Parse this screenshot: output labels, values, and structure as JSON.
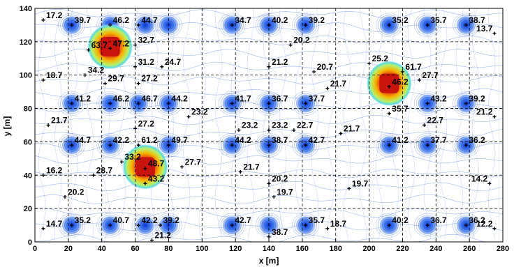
{
  "chart_data": {
    "type": "contour",
    "xlabel": "x [m]",
    "ylabel": "y [m]",
    "xlim": [
      0,
      280
    ],
    "ylim": [
      0,
      140
    ],
    "xticks": [
      "0",
      "20",
      "40",
      "60",
      "80",
      "100",
      "120",
      "140",
      "160",
      "180",
      "200",
      "220",
      "240",
      "260",
      "280"
    ],
    "yticks": [
      "0",
      "20",
      "40",
      "60",
      "80",
      "100",
      "120",
      "140"
    ],
    "grid": true,
    "colors": {
      "line": "#2a5bd8",
      "hot_core": "#d21c12",
      "hot_mid": "#f5b800",
      "marker": "#000000"
    },
    "points": [
      {
        "x": 5,
        "y": 133,
        "label": "17.2"
      },
      {
        "x": 22,
        "y": 130,
        "label": "39.7"
      },
      {
        "x": 45,
        "y": 130,
        "label": "46.2"
      },
      {
        "x": 62,
        "y": 130,
        "label": "44.7"
      },
      {
        "x": 118,
        "y": 130,
        "label": "34.7"
      },
      {
        "x": 140,
        "y": 130,
        "label": "40.2"
      },
      {
        "x": 162,
        "y": 130,
        "label": "39.2"
      },
      {
        "x": 212,
        "y": 130,
        "label": "35.2"
      },
      {
        "x": 235,
        "y": 130,
        "label": "35.7"
      },
      {
        "x": 258,
        "y": 130,
        "label": "38.7"
      },
      {
        "x": 275,
        "y": 125,
        "label": "13.7"
      },
      {
        "x": 45,
        "y": 116,
        "label": "47.2"
      },
      {
        "x": 32,
        "y": 115,
        "label": "63.7"
      },
      {
        "x": 60,
        "y": 118,
        "label": "32.7"
      },
      {
        "x": 153,
        "y": 118,
        "label": "20.2"
      },
      {
        "x": 60,
        "y": 105,
        "label": "31.2"
      },
      {
        "x": 76,
        "y": 105,
        "label": "24.7"
      },
      {
        "x": 140,
        "y": 105,
        "label": "21.2"
      },
      {
        "x": 167,
        "y": 102,
        "label": "20.7"
      },
      {
        "x": 200,
        "y": 107,
        "label": "25.2"
      },
      {
        "x": 5,
        "y": 97,
        "label": "18.7"
      },
      {
        "x": 30,
        "y": 100,
        "label": "34.2"
      },
      {
        "x": 42,
        "y": 95,
        "label": "29.7"
      },
      {
        "x": 62,
        "y": 95,
        "label": "27.2"
      },
      {
        "x": 220,
        "y": 102,
        "label": "61.7"
      },
      {
        "x": 230,
        "y": 97,
        "label": "27.7"
      },
      {
        "x": 212,
        "y": 93,
        "label": "46.2"
      },
      {
        "x": 175,
        "y": 92,
        "label": "21.7"
      },
      {
        "x": 22,
        "y": 83,
        "label": "41.2"
      },
      {
        "x": 45,
        "y": 83,
        "label": "46.2"
      },
      {
        "x": 62,
        "y": 83,
        "label": "46.7"
      },
      {
        "x": 80,
        "y": 83,
        "label": "44.2"
      },
      {
        "x": 118,
        "y": 83,
        "label": "41.7"
      },
      {
        "x": 140,
        "y": 83,
        "label": "36.7"
      },
      {
        "x": 162,
        "y": 83,
        "label": "37.7"
      },
      {
        "x": 235,
        "y": 83,
        "label": "43.2"
      },
      {
        "x": 258,
        "y": 83,
        "label": "39.2"
      },
      {
        "x": 212,
        "y": 77,
        "label": "35.7"
      },
      {
        "x": 92,
        "y": 75,
        "label": "23.2"
      },
      {
        "x": 275,
        "y": 75,
        "label": "21.2"
      },
      {
        "x": 8,
        "y": 70,
        "label": "21.7"
      },
      {
        "x": 60,
        "y": 68,
        "label": "27.2"
      },
      {
        "x": 122,
        "y": 67,
        "label": "23.2"
      },
      {
        "x": 140,
        "y": 67,
        "label": "23.2"
      },
      {
        "x": 155,
        "y": 67,
        "label": "22.7"
      },
      {
        "x": 183,
        "y": 65,
        "label": "21.7"
      },
      {
        "x": 233,
        "y": 70,
        "label": "22.7"
      },
      {
        "x": 22,
        "y": 58,
        "label": "44.7"
      },
      {
        "x": 45,
        "y": 58,
        "label": "42.2"
      },
      {
        "x": 62,
        "y": 58,
        "label": "61.2"
      },
      {
        "x": 80,
        "y": 58,
        "label": "49.7"
      },
      {
        "x": 118,
        "y": 58,
        "label": "44.2"
      },
      {
        "x": 140,
        "y": 58,
        "label": "38.7"
      },
      {
        "x": 162,
        "y": 58,
        "label": "42.7"
      },
      {
        "x": 212,
        "y": 58,
        "label": "41.2"
      },
      {
        "x": 235,
        "y": 58,
        "label": "37.7"
      },
      {
        "x": 258,
        "y": 58,
        "label": "36.2"
      },
      {
        "x": 52,
        "y": 48,
        "label": "33.2"
      },
      {
        "x": 66,
        "y": 44,
        "label": "48.7"
      },
      {
        "x": 88,
        "y": 45,
        "label": "27.7"
      },
      {
        "x": 5,
        "y": 40,
        "label": "16.2"
      },
      {
        "x": 35,
        "y": 40,
        "label": "28.7"
      },
      {
        "x": 123,
        "y": 42,
        "label": "21.7"
      },
      {
        "x": 140,
        "y": 35,
        "label": "20.2"
      },
      {
        "x": 188,
        "y": 32,
        "label": "19.7"
      },
      {
        "x": 272,
        "y": 35,
        "label": "14.2"
      },
      {
        "x": 66,
        "y": 35,
        "label": "43.2"
      },
      {
        "x": 18,
        "y": 27,
        "label": "20.2"
      },
      {
        "x": 143,
        "y": 27,
        "label": "19.7"
      },
      {
        "x": 5,
        "y": 8,
        "label": "14.7"
      },
      {
        "x": 22,
        "y": 10,
        "label": "35.2"
      },
      {
        "x": 45,
        "y": 10,
        "label": "40.7"
      },
      {
        "x": 62,
        "y": 10,
        "label": "42.2"
      },
      {
        "x": 75,
        "y": 10,
        "label": "39.2"
      },
      {
        "x": 118,
        "y": 10,
        "label": "42.7"
      },
      {
        "x": 162,
        "y": 10,
        "label": "35.7"
      },
      {
        "x": 212,
        "y": 10,
        "label": "40.2"
      },
      {
        "x": 235,
        "y": 10,
        "label": "36.7"
      },
      {
        "x": 258,
        "y": 10,
        "label": "36.2"
      },
      {
        "x": 275,
        "y": 8,
        "label": "12.2"
      },
      {
        "x": 175,
        "y": 8,
        "label": "18.7"
      },
      {
        "x": 70,
        "y": 1,
        "label": "21.2"
      },
      {
        "x": 140,
        "y": 3,
        "label": "38.7"
      }
    ],
    "sources": [
      {
        "x": 22,
        "y": 130
      },
      {
        "x": 45,
        "y": 130
      },
      {
        "x": 66,
        "y": 130
      },
      {
        "x": 80,
        "y": 130
      },
      {
        "x": 118,
        "y": 130
      },
      {
        "x": 140,
        "y": 130
      },
      {
        "x": 162,
        "y": 130
      },
      {
        "x": 212,
        "y": 130
      },
      {
        "x": 235,
        "y": 130
      },
      {
        "x": 258,
        "y": 130
      },
      {
        "x": 22,
        "y": 83
      },
      {
        "x": 45,
        "y": 83
      },
      {
        "x": 62,
        "y": 83
      },
      {
        "x": 80,
        "y": 83
      },
      {
        "x": 118,
        "y": 83
      },
      {
        "x": 140,
        "y": 83
      },
      {
        "x": 162,
        "y": 83
      },
      {
        "x": 235,
        "y": 83
      },
      {
        "x": 258,
        "y": 83
      },
      {
        "x": 22,
        "y": 58
      },
      {
        "x": 45,
        "y": 58
      },
      {
        "x": 80,
        "y": 58
      },
      {
        "x": 118,
        "y": 58
      },
      {
        "x": 140,
        "y": 58
      },
      {
        "x": 162,
        "y": 58
      },
      {
        "x": 212,
        "y": 58
      },
      {
        "x": 235,
        "y": 58
      },
      {
        "x": 258,
        "y": 58
      },
      {
        "x": 22,
        "y": 10
      },
      {
        "x": 45,
        "y": 10
      },
      {
        "x": 66,
        "y": 10
      },
      {
        "x": 80,
        "y": 10
      },
      {
        "x": 118,
        "y": 10
      },
      {
        "x": 140,
        "y": 10
      },
      {
        "x": 162,
        "y": 10
      },
      {
        "x": 212,
        "y": 10
      },
      {
        "x": 235,
        "y": 10
      },
      {
        "x": 258,
        "y": 10
      }
    ],
    "hotspots": [
      {
        "x": 45,
        "y": 117,
        "intensity": 1.0
      },
      {
        "x": 66,
        "y": 45,
        "intensity": 1.0
      },
      {
        "x": 212,
        "y": 95,
        "intensity": 1.0
      }
    ]
  }
}
